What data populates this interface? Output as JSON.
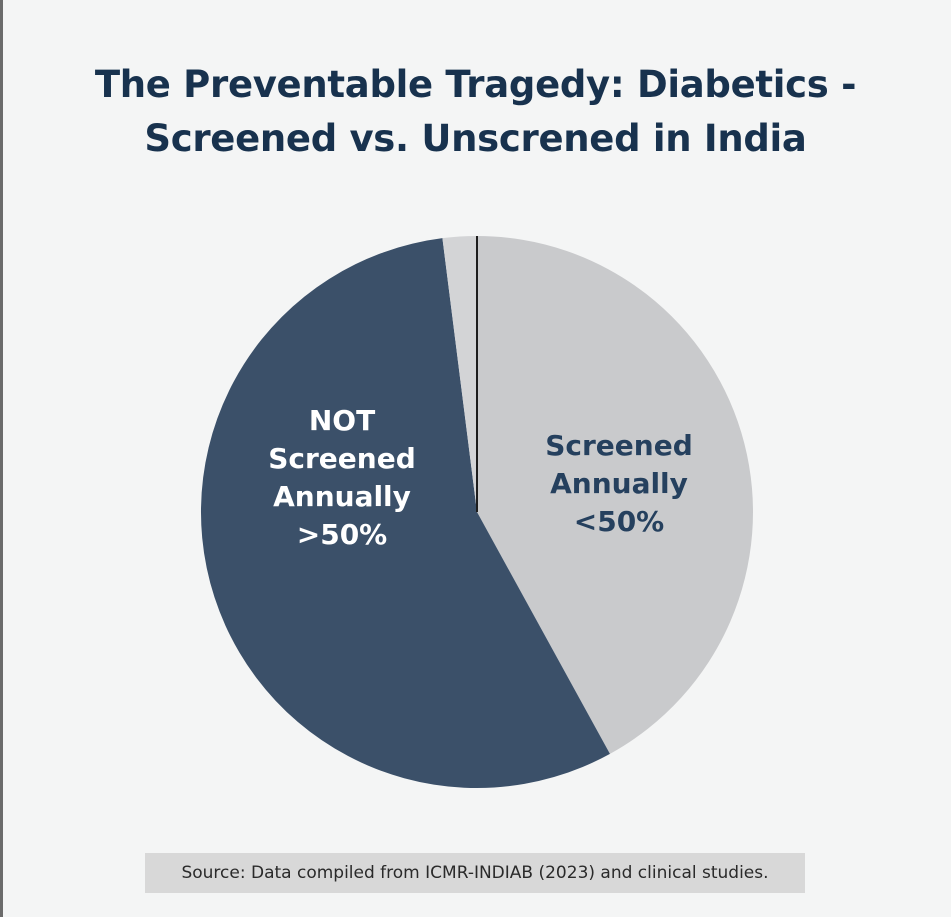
{
  "page": {
    "background": "#f4f5f5"
  },
  "chart_data": {
    "type": "pie",
    "title": "The Preventable Tragedy: Diabetics - Screened vs. Unscrened in India",
    "title_lines": [
      "The Preventable Tragedy: Diabetics -",
      "Screened vs. Unscrened in India"
    ],
    "start_angle_deg": 0,
    "slices": [
      {
        "label_lines": [
          "Screened",
          "Annually",
          "<50%"
        ],
        "value": 42,
        "color": "#c9cacc",
        "label_color": "#25405e"
      },
      {
        "label_lines": [
          "NOT",
          "Screened",
          "Annually",
          ">50%"
        ],
        "value": 56,
        "color": "#3b5069",
        "label_color": "#ffffff"
      },
      {
        "label_lines": [],
        "value": 2,
        "color": "#d3d4d6",
        "label_color": "#25405e"
      }
    ],
    "source": "Source: Data compiled from ICMR-INDIAB (2023) and clinical studies."
  }
}
